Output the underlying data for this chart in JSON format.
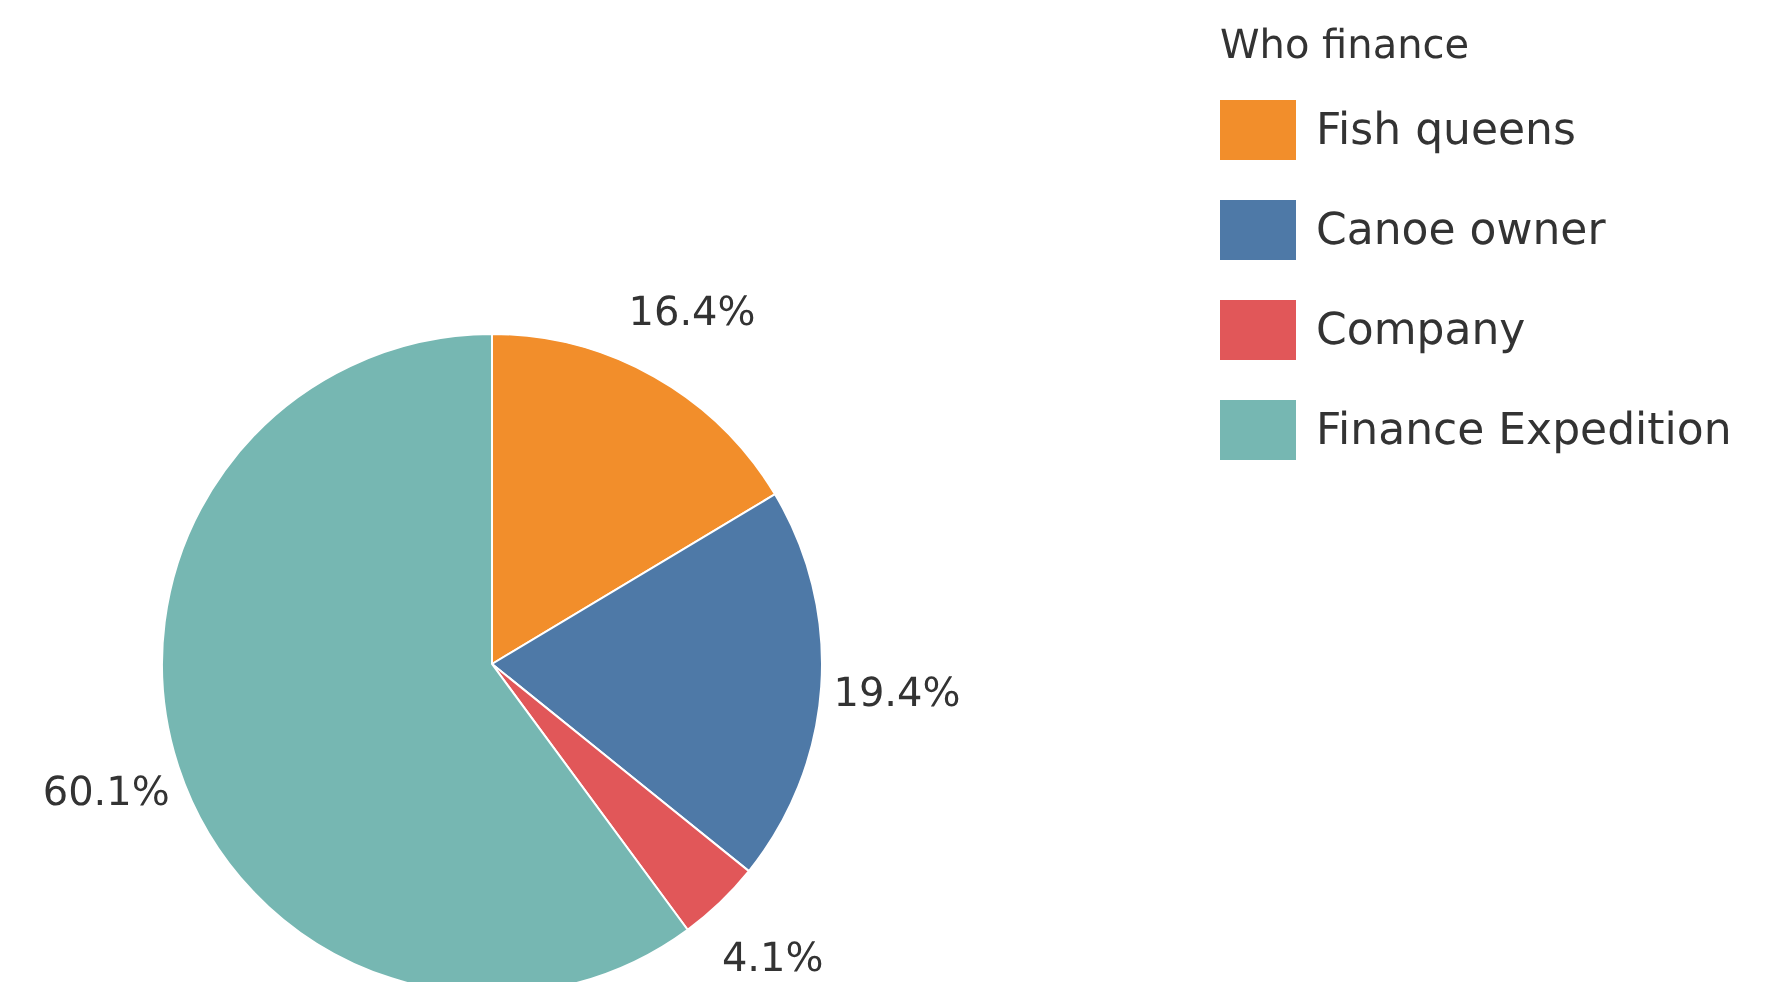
{
  "chart_data": {
    "type": "pie",
    "legend_title": "Who finance",
    "categories": [
      "Fish queens",
      "Canoe owner",
      "Company",
      "Finance Expedition"
    ],
    "values": [
      16.4,
      19.4,
      4.1,
      60.1
    ],
    "colors": [
      "#f28e2b",
      "#4e79a7",
      "#e15759",
      "#76b7b2"
    ],
    "value_labels": [
      "16.4%",
      "19.4%",
      "4.1%",
      "60.1%"
    ],
    "legend": "top right"
  }
}
